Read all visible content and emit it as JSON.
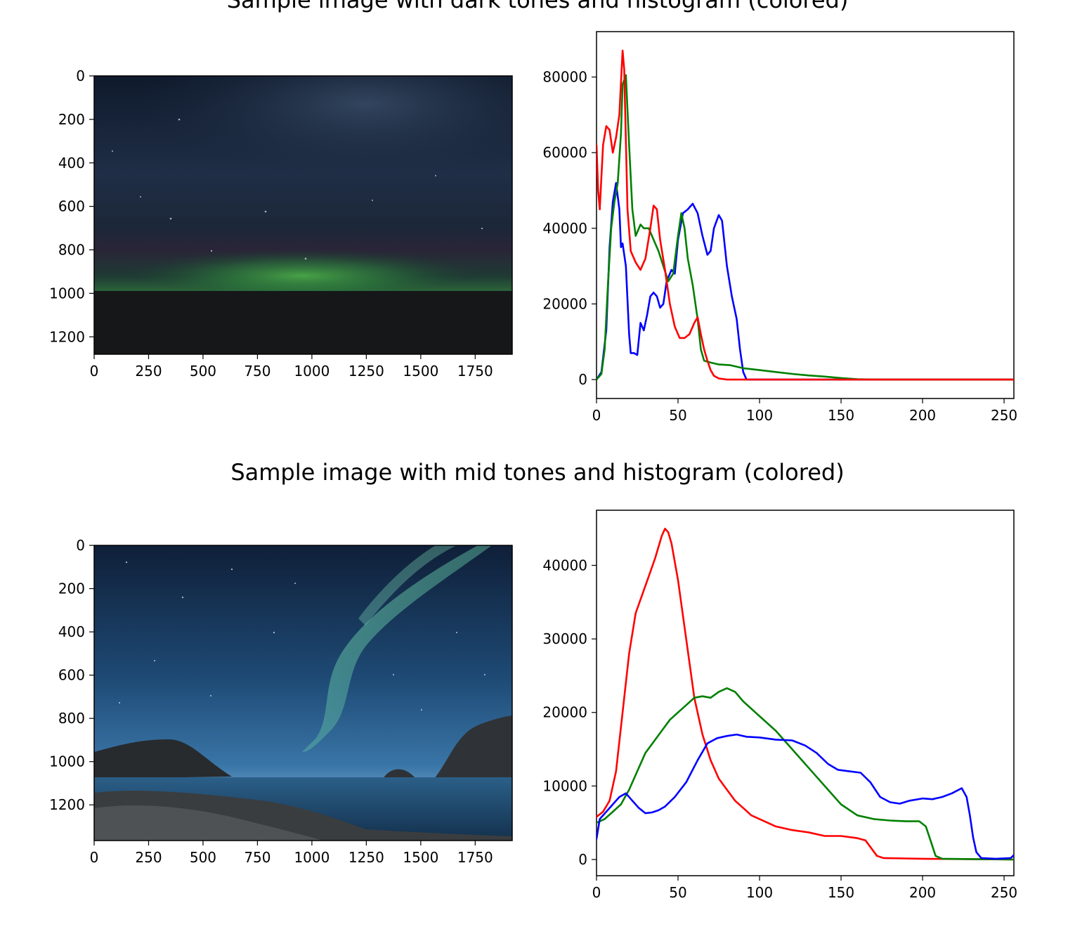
{
  "figure": {
    "row1_title": "Sample image with dark tones and histogram (colored)",
    "row2_title": "Sample image with mid tones and histogram (colored)"
  },
  "colors": {
    "red": "#ff0000",
    "green": "#008000",
    "blue": "#0000ff"
  },
  "chart_data": [
    {
      "type": "image",
      "description_role": "photo",
      "title": "",
      "x_ticks": [
        0,
        250,
        500,
        750,
        1000,
        1250,
        1500,
        1750
      ],
      "y_ticks": [
        0,
        200,
        400,
        600,
        800,
        1000,
        1200
      ],
      "xlim": [
        0,
        1920
      ],
      "ylim": [
        1280,
        0
      ]
    },
    {
      "type": "line",
      "title": "",
      "xlim": [
        0,
        256
      ],
      "ylim": [
        -5000,
        92000
      ],
      "x_ticks": [
        0,
        50,
        100,
        150,
        200,
        250
      ],
      "y_ticks": [
        0,
        20000,
        40000,
        60000,
        80000
      ],
      "series": [
        {
          "color": "blue",
          "points": [
            [
              0,
              0
            ],
            [
              3,
              2000
            ],
            [
              6,
              13000
            ],
            [
              8,
              35000
            ],
            [
              10,
              47000
            ],
            [
              12,
              52000
            ],
            [
              14,
              45000
            ],
            [
              15,
              35000
            ],
            [
              16,
              36000
            ],
            [
              18,
              30000
            ],
            [
              20,
              12000
            ],
            [
              21,
              7000
            ],
            [
              23,
              7000
            ],
            [
              25,
              6500
            ],
            [
              27,
              15000
            ],
            [
              29,
              13000
            ],
            [
              31,
              17000
            ],
            [
              33,
              22000
            ],
            [
              35,
              23000
            ],
            [
              37,
              22000
            ],
            [
              39,
              19000
            ],
            [
              41,
              20000
            ],
            [
              43,
              26000
            ],
            [
              46,
              29000
            ],
            [
              48,
              28000
            ],
            [
              50,
              37000
            ],
            [
              53,
              44000
            ],
            [
              56,
              45000
            ],
            [
              59,
              46500
            ],
            [
              62,
              44000
            ],
            [
              65,
              38000
            ],
            [
              68,
              33000
            ],
            [
              70,
              34000
            ],
            [
              72,
              40000
            ],
            [
              75,
              43500
            ],
            [
              77,
              42000
            ],
            [
              80,
              30000
            ],
            [
              83,
              22000
            ],
            [
              86,
              16000
            ],
            [
              88,
              8000
            ],
            [
              90,
              2000
            ],
            [
              92,
              0
            ],
            [
              256,
              0
            ]
          ]
        },
        {
          "color": "green",
          "points": [
            [
              0,
              0
            ],
            [
              3,
              1500
            ],
            [
              5,
              8000
            ],
            [
              7,
              25000
            ],
            [
              9,
              40000
            ],
            [
              11,
              47000
            ],
            [
              13,
              52000
            ],
            [
              15,
              65000
            ],
            [
              16,
              78000
            ],
            [
              18,
              80500
            ],
            [
              20,
              62000
            ],
            [
              22,
              45000
            ],
            [
              24,
              38000
            ],
            [
              27,
              41000
            ],
            [
              29,
              40000
            ],
            [
              32,
              40000
            ],
            [
              34,
              38000
            ],
            [
              36,
              36000
            ],
            [
              38,
              34000
            ],
            [
              41,
              30000
            ],
            [
              44,
              26000
            ],
            [
              47,
              28000
            ],
            [
              50,
              38000
            ],
            [
              52,
              44000
            ],
            [
              54,
              40000
            ],
            [
              56,
              32000
            ],
            [
              59,
              25000
            ],
            [
              62,
              16000
            ],
            [
              64,
              8000
            ],
            [
              66,
              5000
            ],
            [
              70,
              4500
            ],
            [
              75,
              4000
            ],
            [
              82,
              3800
            ],
            [
              90,
              3000
            ],
            [
              100,
              2500
            ],
            [
              110,
              2000
            ],
            [
              120,
              1500
            ],
            [
              130,
              1100
            ],
            [
              140,
              800
            ],
            [
              150,
              400
            ],
            [
              160,
              100
            ],
            [
              170,
              0
            ],
            [
              256,
              0
            ]
          ]
        },
        {
          "color": "red",
          "points": [
            [
              0,
              62000
            ],
            [
              1,
              50000
            ],
            [
              2,
              45000
            ],
            [
              4,
              62000
            ],
            [
              6,
              67000
            ],
            [
              8,
              66000
            ],
            [
              10,
              60000
            ],
            [
              12,
              64000
            ],
            [
              14,
              70000
            ],
            [
              16,
              87000
            ],
            [
              17,
              82000
            ],
            [
              19,
              45000
            ],
            [
              21,
              34000
            ],
            [
              24,
              31000
            ],
            [
              27,
              29000
            ],
            [
              30,
              32000
            ],
            [
              33,
              40000
            ],
            [
              35,
              46000
            ],
            [
              37,
              45000
            ],
            [
              39,
              37000
            ],
            [
              42,
              29000
            ],
            [
              45,
              20000
            ],
            [
              48,
              14000
            ],
            [
              51,
              11000
            ],
            [
              54,
              11000
            ],
            [
              57,
              12000
            ],
            [
              60,
              15000
            ],
            [
              62,
              16500
            ],
            [
              64,
              12000
            ],
            [
              66,
              8000
            ],
            [
              68,
              5000
            ],
            [
              70,
              2500
            ],
            [
              72,
              1000
            ],
            [
              75,
              300
            ],
            [
              80,
              0
            ],
            [
              256,
              0
            ]
          ]
        }
      ]
    },
    {
      "type": "image",
      "description_role": "photo",
      "title": "",
      "x_ticks": [
        0,
        250,
        500,
        750,
        1000,
        1250,
        1500,
        1750
      ],
      "y_ticks": [
        0,
        200,
        400,
        600,
        800,
        1000,
        1200
      ],
      "xlim": [
        0,
        1920
      ],
      "ylim": [
        1365,
        0
      ]
    },
    {
      "type": "line",
      "title": "",
      "xlim": [
        0,
        256
      ],
      "ylim": [
        -2200,
        47500
      ],
      "x_ticks": [
        0,
        50,
        100,
        150,
        200,
        250
      ],
      "y_ticks": [
        0,
        10000,
        20000,
        30000,
        40000
      ],
      "series": [
        {
          "color": "red",
          "points": [
            [
              0,
              5800
            ],
            [
              4,
              6500
            ],
            [
              8,
              8000
            ],
            [
              12,
              12000
            ],
            [
              16,
              20000
            ],
            [
              20,
              28000
            ],
            [
              24,
              33500
            ],
            [
              28,
              36000
            ],
            [
              32,
              38500
            ],
            [
              36,
              41000
            ],
            [
              40,
              44000
            ],
            [
              42,
              45000
            ],
            [
              44,
              44500
            ],
            [
              46,
              43000
            ],
            [
              50,
              38000
            ],
            [
              55,
              30000
            ],
            [
              60,
              22000
            ],
            [
              65,
              17000
            ],
            [
              70,
              13500
            ],
            [
              75,
              11000
            ],
            [
              80,
              9500
            ],
            [
              85,
              8000
            ],
            [
              90,
              7000
            ],
            [
              95,
              6000
            ],
            [
              100,
              5500
            ],
            [
              110,
              4500
            ],
            [
              120,
              4000
            ],
            [
              130,
              3700
            ],
            [
              140,
              3200
            ],
            [
              150,
              3200
            ],
            [
              160,
              2900
            ],
            [
              165,
              2600
            ],
            [
              168,
              1700
            ],
            [
              172,
              500
            ],
            [
              176,
              200
            ],
            [
              200,
              100
            ],
            [
              256,
              0
            ]
          ]
        },
        {
          "color": "green",
          "points": [
            [
              0,
              5000
            ],
            [
              5,
              5500
            ],
            [
              10,
              6500
            ],
            [
              15,
              7500
            ],
            [
              20,
              9500
            ],
            [
              25,
              12000
            ],
            [
              30,
              14500
            ],
            [
              35,
              16000
            ],
            [
              40,
              17500
            ],
            [
              45,
              19000
            ],
            [
              50,
              20000
            ],
            [
              55,
              21000
            ],
            [
              60,
              22000
            ],
            [
              65,
              22200
            ],
            [
              70,
              22000
            ],
            [
              75,
              22800
            ],
            [
              80,
              23300
            ],
            [
              85,
              22800
            ],
            [
              90,
              21500
            ],
            [
              100,
              19500
            ],
            [
              110,
              17500
            ],
            [
              120,
              15000
            ],
            [
              130,
              12500
            ],
            [
              140,
              10000
            ],
            [
              150,
              7500
            ],
            [
              160,
              6000
            ],
            [
              170,
              5500
            ],
            [
              180,
              5300
            ],
            [
              190,
              5200
            ],
            [
              198,
              5200
            ],
            [
              202,
              4500
            ],
            [
              205,
              2500
            ],
            [
              208,
              500
            ],
            [
              212,
              100
            ],
            [
              256,
              0
            ]
          ]
        },
        {
          "color": "blue",
          "points": [
            [
              0,
              2800
            ],
            [
              2,
              5500
            ],
            [
              6,
              6500
            ],
            [
              10,
              7500
            ],
            [
              14,
              8500
            ],
            [
              18,
              9000
            ],
            [
              22,
              8000
            ],
            [
              26,
              7000
            ],
            [
              30,
              6300
            ],
            [
              34,
              6400
            ],
            [
              38,
              6700
            ],
            [
              42,
              7200
            ],
            [
              48,
              8500
            ],
            [
              55,
              10500
            ],
            [
              62,
              13500
            ],
            [
              68,
              15800
            ],
            [
              74,
              16500
            ],
            [
              80,
              16800
            ],
            [
              86,
              17000
            ],
            [
              92,
              16700
            ],
            [
              100,
              16600
            ],
            [
              110,
              16300
            ],
            [
              120,
              16200
            ],
            [
              128,
              15500
            ],
            [
              135,
              14500
            ],
            [
              142,
              13000
            ],
            [
              148,
              12200
            ],
            [
              155,
              12000
            ],
            [
              162,
              11800
            ],
            [
              168,
              10500
            ],
            [
              174,
              8500
            ],
            [
              180,
              7800
            ],
            [
              186,
              7600
            ],
            [
              192,
              8000
            ],
            [
              200,
              8300
            ],
            [
              206,
              8200
            ],
            [
              212,
              8500
            ],
            [
              218,
              9000
            ],
            [
              224,
              9700
            ],
            [
              227,
              8500
            ],
            [
              229,
              6000
            ],
            [
              231,
              3000
            ],
            [
              233,
              1000
            ],
            [
              236,
              200
            ],
            [
              245,
              100
            ],
            [
              254,
              200
            ],
            [
              256,
              600
            ]
          ]
        }
      ]
    }
  ]
}
